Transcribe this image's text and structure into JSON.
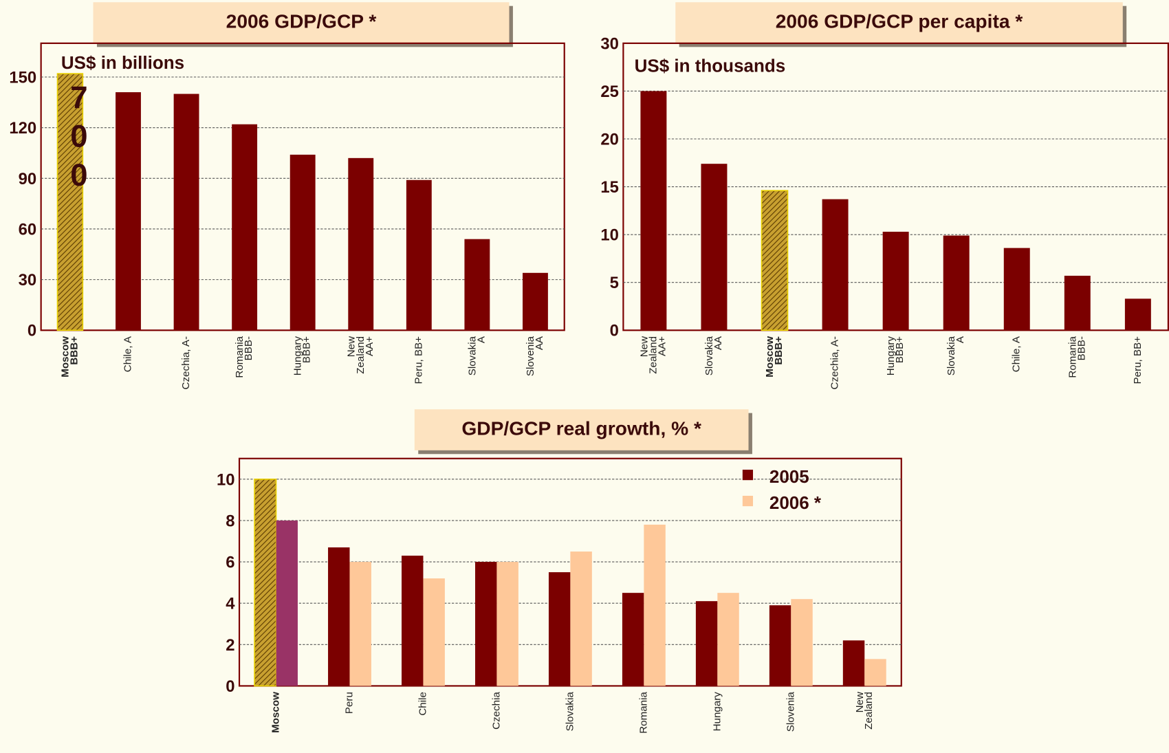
{
  "chart_data": [
    {
      "type": "bar",
      "title": "2006 GDP/GCP *",
      "subtitle": "US$ in billions",
      "annotation": "700",
      "categories": [
        [
          "Moscow",
          "BBB+"
        ],
        [
          "Chile, A"
        ],
        [
          "Czechia, A-"
        ],
        [
          "Romania",
          "BBB-"
        ],
        [
          "Hungary",
          "BBB+"
        ],
        [
          "New",
          "Zealand",
          "AA+"
        ],
        [
          "Peru, BB+"
        ],
        [
          "Slovakia",
          "A"
        ],
        [
          "Slovenia",
          "AA"
        ]
      ],
      "values": [
        152,
        141,
        140,
        122,
        104,
        102,
        89,
        54,
        34
      ],
      "color": "#7b0000",
      "highlight_color": "#c8a030",
      "highlight_index": 0,
      "ylim": [
        0,
        170
      ],
      "yticks": [
        0,
        30,
        60,
        90,
        120,
        150
      ],
      "grid": true
    },
    {
      "type": "bar",
      "title": "2006 GDP/GCP per capita *",
      "subtitle": "US$ in thousands",
      "categories": [
        [
          "New",
          "Zealand",
          "AA+"
        ],
        [
          "Slovakia",
          "AA"
        ],
        [
          "Moscow",
          "BBB+"
        ],
        [
          "Czechia, A-"
        ],
        [
          "Hungary",
          "BBB+"
        ],
        [
          "Slovakia",
          "A"
        ],
        [
          "Chile, A"
        ],
        [
          "Romania",
          "BBB-"
        ],
        [
          "Peru, BB+"
        ]
      ],
      "values": [
        25,
        17.4,
        14.6,
        13.7,
        10.3,
        9.9,
        8.6,
        5.7,
        3.3
      ],
      "color": "#7b0000",
      "highlight_color": "#c8a030",
      "highlight_index": 2,
      "ylim": [
        0,
        30
      ],
      "yticks": [
        0,
        5,
        10,
        15,
        20,
        25,
        30
      ],
      "grid": true
    },
    {
      "type": "grouped_bar",
      "title": "GDP/GCP real growth, % *",
      "categories": [
        [
          "Moscow"
        ],
        [
          "Peru"
        ],
        [
          "Chile"
        ],
        [
          "Czechia"
        ],
        [
          "Slovakia"
        ],
        [
          "Romania"
        ],
        [
          "Hungary"
        ],
        [
          "Slovenia"
        ],
        [
          "New",
          "Zealand"
        ]
      ],
      "series": [
        {
          "name": "2005",
          "color": "#7b0000",
          "highlight_color": "#c8a030",
          "values": [
            10,
            6.7,
            6.3,
            6.0,
            5.5,
            4.5,
            4.1,
            3.9,
            2.2
          ]
        },
        {
          "name": "2006 *",
          "color": "#fec899",
          "highlight_color": "#993366",
          "values": [
            8.0,
            6.0,
            5.2,
            6.0,
            6.5,
            7.8,
            4.5,
            4.2,
            1.3
          ]
        }
      ],
      "highlight_index": 0,
      "ylim": [
        0,
        11
      ],
      "yticks": [
        0,
        2,
        4,
        6,
        8,
        10
      ],
      "grid": true,
      "legend": "top-right"
    }
  ]
}
